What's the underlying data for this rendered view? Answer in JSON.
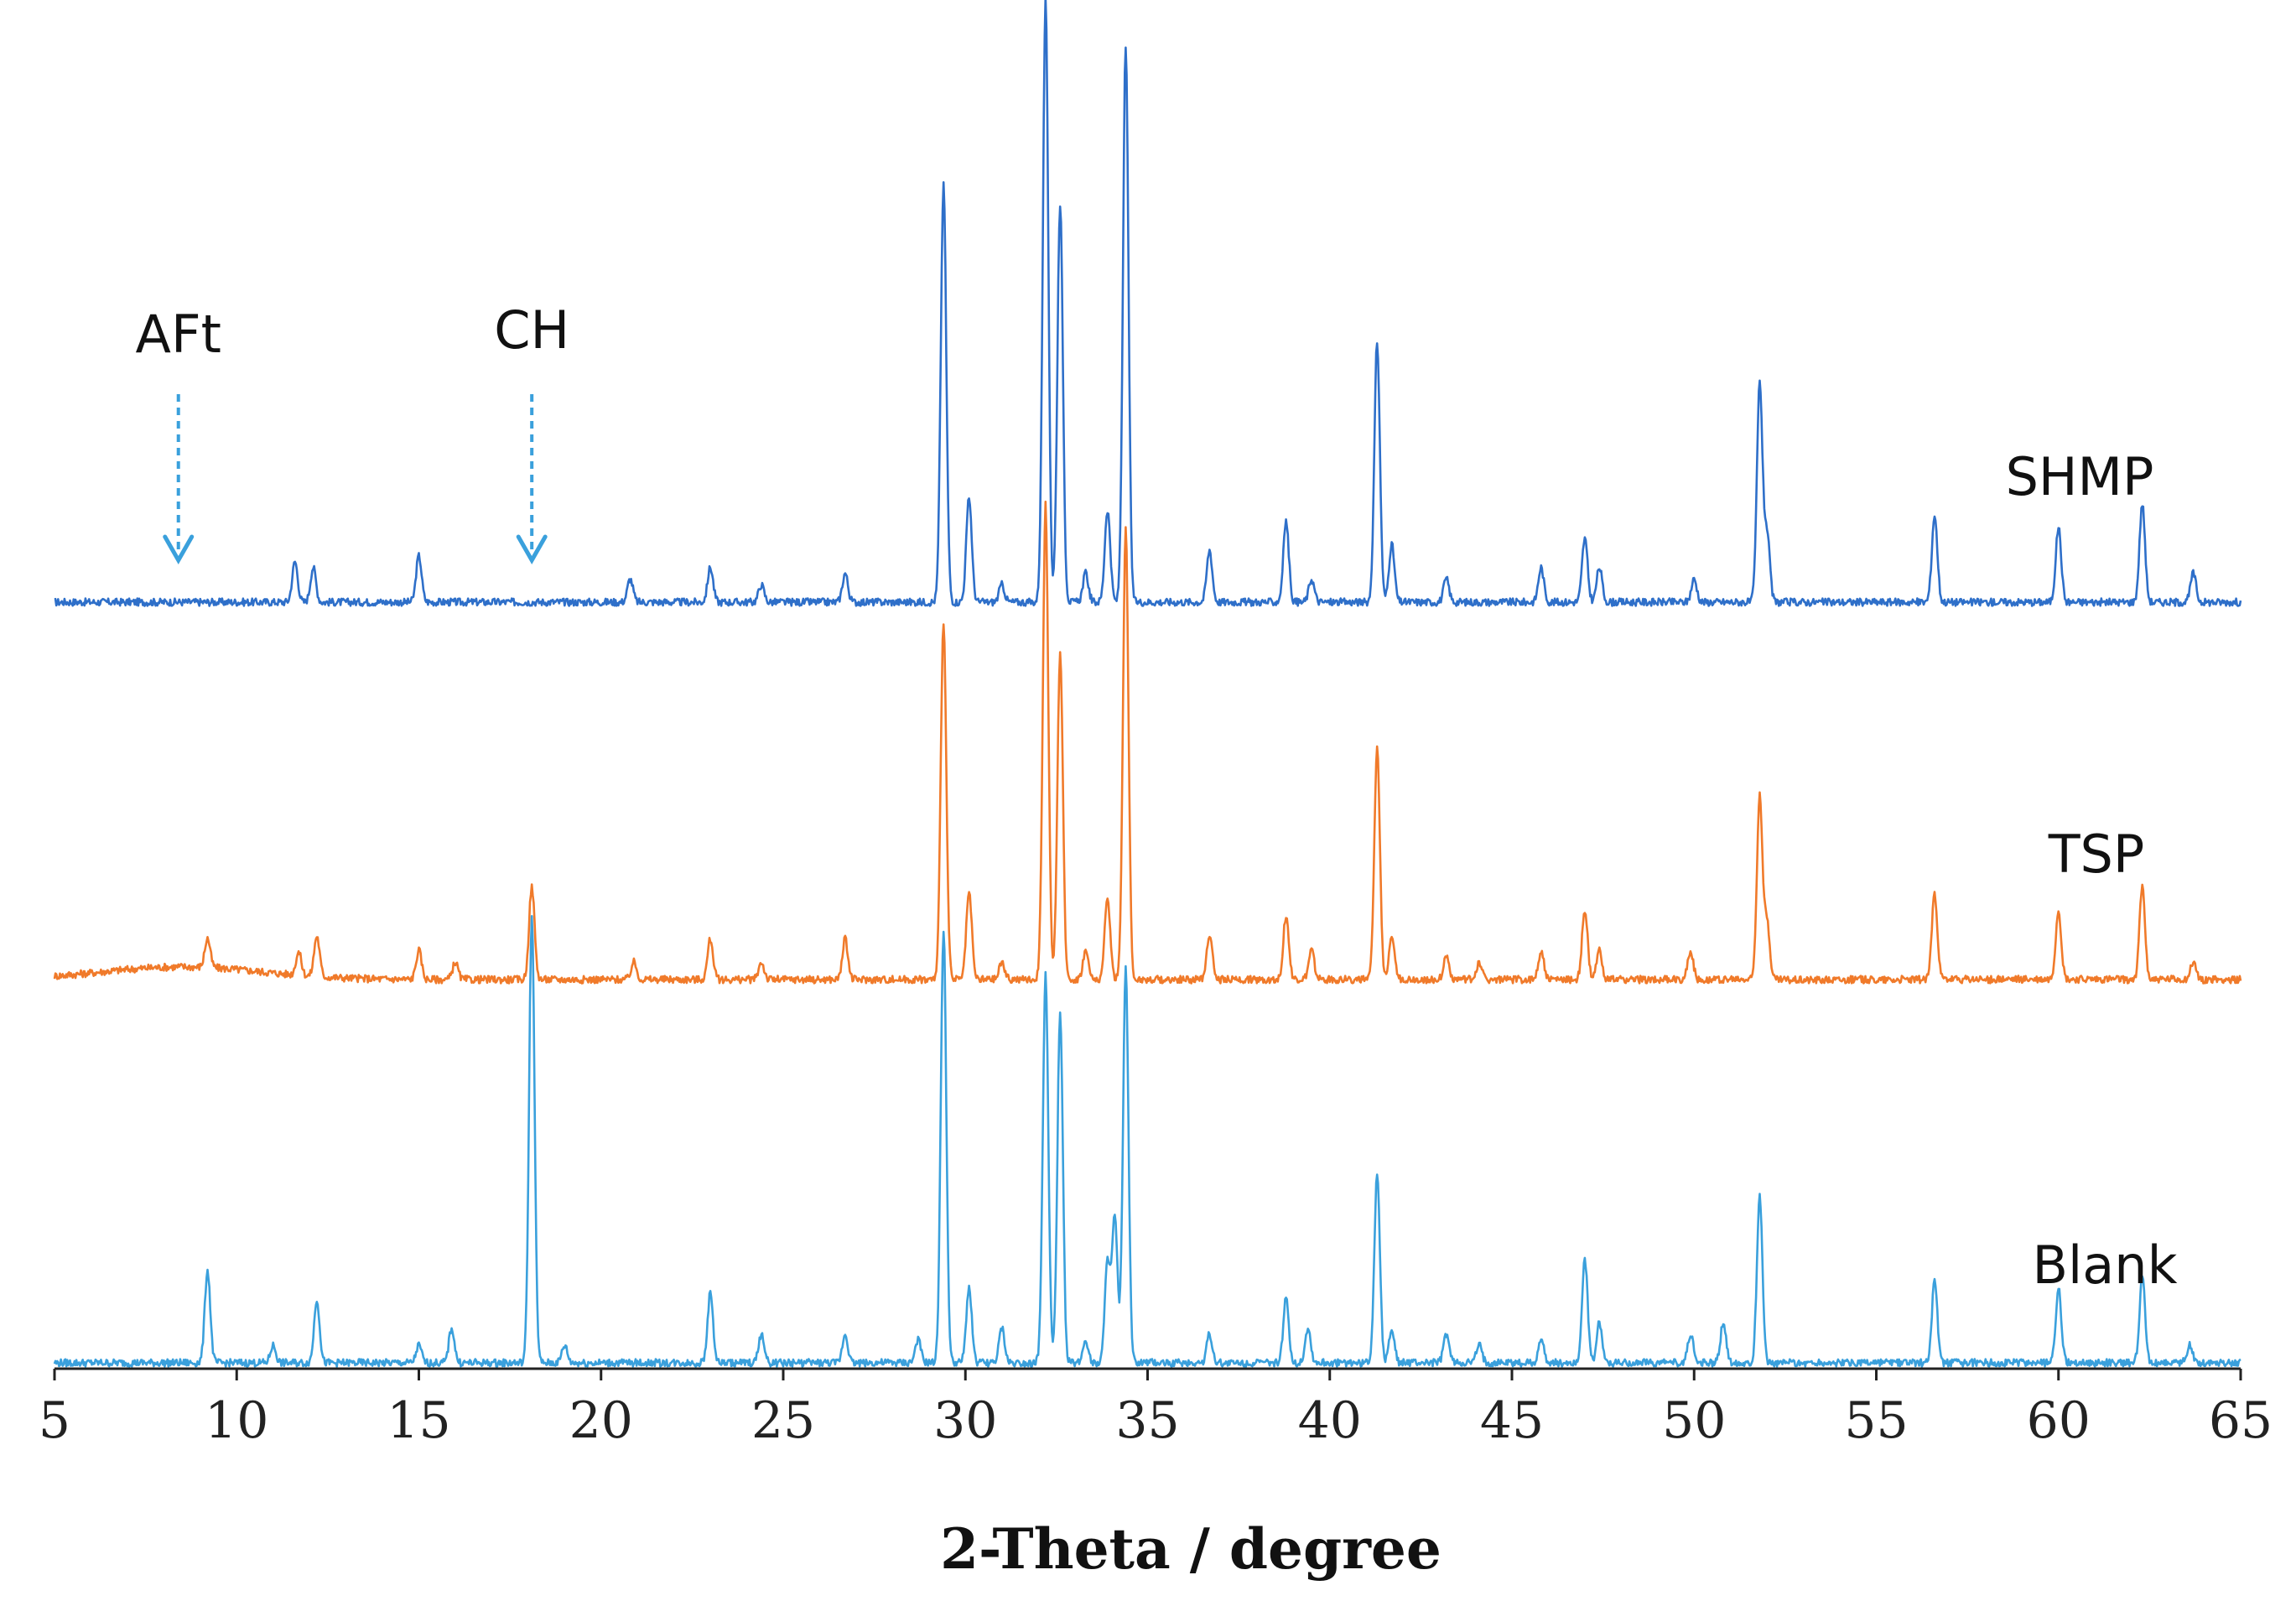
{
  "chart_data": {
    "type": "line",
    "title": "",
    "xlabel": "2-Theta / degree",
    "ylabel": "",
    "xlim": [
      5,
      65
    ],
    "xticks": [
      5,
      10,
      15,
      20,
      25,
      30,
      35,
      40,
      45,
      50,
      55,
      60,
      65
    ],
    "grid": false,
    "legend": "none",
    "annotations": [
      {
        "text": "AFt",
        "x": 8.4
      },
      {
        "text": "CH",
        "x": 18.1
      }
    ],
    "annotation_color": "#3aa0dc",
    "series": [
      {
        "name": "SHMP",
        "color": "#2e6fc9",
        "baseline": 0,
        "peaks": [
          {
            "x": 11.6,
            "h": 7
          },
          {
            "x": 12.1,
            "h": 6
          },
          {
            "x": 15.0,
            "h": 8
          },
          {
            "x": 20.8,
            "h": 4
          },
          {
            "x": 23.0,
            "h": 6
          },
          {
            "x": 24.4,
            "h": 3
          },
          {
            "x": 26.7,
            "h": 5
          },
          {
            "x": 29.4,
            "h": 72
          },
          {
            "x": 30.1,
            "h": 18
          },
          {
            "x": 31.0,
            "h": 3
          },
          {
            "x": 32.2,
            "h": 104
          },
          {
            "x": 32.6,
            "h": 69
          },
          {
            "x": 33.3,
            "h": 5
          },
          {
            "x": 33.9,
            "h": 16
          },
          {
            "x": 34.4,
            "h": 96
          },
          {
            "x": 36.7,
            "h": 9
          },
          {
            "x": 38.8,
            "h": 14
          },
          {
            "x": 39.5,
            "h": 4
          },
          {
            "x": 41.3,
            "h": 45
          },
          {
            "x": 41.7,
            "h": 10
          },
          {
            "x": 43.2,
            "h": 4
          },
          {
            "x": 45.8,
            "h": 6
          },
          {
            "x": 47.0,
            "h": 11
          },
          {
            "x": 47.4,
            "h": 6
          },
          {
            "x": 50.0,
            "h": 4
          },
          {
            "x": 51.8,
            "h": 38
          },
          {
            "x": 52.0,
            "h": 12
          },
          {
            "x": 56.6,
            "h": 15
          },
          {
            "x": 60.0,
            "h": 13
          },
          {
            "x": 62.3,
            "h": 17
          },
          {
            "x": 63.7,
            "h": 5
          }
        ]
      },
      {
        "name": "TSP",
        "color": "#f07a2a",
        "baseline": 0,
        "peaks": [
          {
            "x": 9.2,
            "h": 5
          },
          {
            "x": 11.7,
            "h": 4
          },
          {
            "x": 12.2,
            "h": 7
          },
          {
            "x": 15.0,
            "h": 5
          },
          {
            "x": 16.0,
            "h": 3
          },
          {
            "x": 18.1,
            "h": 16
          },
          {
            "x": 20.9,
            "h": 3
          },
          {
            "x": 23.0,
            "h": 7
          },
          {
            "x": 24.4,
            "h": 3
          },
          {
            "x": 26.7,
            "h": 7
          },
          {
            "x": 29.4,
            "h": 62
          },
          {
            "x": 30.1,
            "h": 15
          },
          {
            "x": 31.0,
            "h": 3
          },
          {
            "x": 32.2,
            "h": 82
          },
          {
            "x": 32.6,
            "h": 56
          },
          {
            "x": 33.3,
            "h": 5
          },
          {
            "x": 33.9,
            "h": 14
          },
          {
            "x": 34.4,
            "h": 78
          },
          {
            "x": 36.7,
            "h": 8
          },
          {
            "x": 38.8,
            "h": 11
          },
          {
            "x": 39.5,
            "h": 5
          },
          {
            "x": 41.3,
            "h": 40
          },
          {
            "x": 41.7,
            "h": 8
          },
          {
            "x": 43.2,
            "h": 4
          },
          {
            "x": 44.1,
            "h": 3
          },
          {
            "x": 45.8,
            "h": 5
          },
          {
            "x": 47.0,
            "h": 12
          },
          {
            "x": 47.4,
            "h": 5
          },
          {
            "x": 49.9,
            "h": 5
          },
          {
            "x": 51.8,
            "h": 32
          },
          {
            "x": 52.0,
            "h": 10
          },
          {
            "x": 56.6,
            "h": 15
          },
          {
            "x": 60.0,
            "h": 12
          },
          {
            "x": 62.3,
            "h": 16
          },
          {
            "x": 63.7,
            "h": 3
          }
        ]
      },
      {
        "name": "Blank",
        "color": "#3aa0dc",
        "baseline": 0,
        "peaks": [
          {
            "x": 9.2,
            "h": 16
          },
          {
            "x": 11.0,
            "h": 3
          },
          {
            "x": 12.2,
            "h": 11
          },
          {
            "x": 15.0,
            "h": 3
          },
          {
            "x": 15.9,
            "h": 6
          },
          {
            "x": 18.1,
            "h": 77
          },
          {
            "x": 19.0,
            "h": 3
          },
          {
            "x": 23.0,
            "h": 12
          },
          {
            "x": 24.4,
            "h": 5
          },
          {
            "x": 26.7,
            "h": 5
          },
          {
            "x": 28.7,
            "h": 4
          },
          {
            "x": 29.4,
            "h": 75
          },
          {
            "x": 30.1,
            "h": 13
          },
          {
            "x": 31.0,
            "h": 6
          },
          {
            "x": 32.2,
            "h": 67
          },
          {
            "x": 32.6,
            "h": 60
          },
          {
            "x": 33.3,
            "h": 4
          },
          {
            "x": 33.9,
            "h": 17
          },
          {
            "x": 34.1,
            "h": 25
          },
          {
            "x": 34.4,
            "h": 68
          },
          {
            "x": 36.7,
            "h": 5
          },
          {
            "x": 38.8,
            "h": 11
          },
          {
            "x": 39.4,
            "h": 6
          },
          {
            "x": 41.3,
            "h": 33
          },
          {
            "x": 41.7,
            "h": 6
          },
          {
            "x": 43.2,
            "h": 5
          },
          {
            "x": 44.1,
            "h": 3
          },
          {
            "x": 45.8,
            "h": 4
          },
          {
            "x": 47.0,
            "h": 18
          },
          {
            "x": 47.4,
            "h": 7
          },
          {
            "x": 49.9,
            "h": 5
          },
          {
            "x": 50.8,
            "h": 7
          },
          {
            "x": 51.8,
            "h": 29
          },
          {
            "x": 56.6,
            "h": 14
          },
          {
            "x": 60.0,
            "h": 13
          },
          {
            "x": 62.3,
            "h": 15
          },
          {
            "x": 63.6,
            "h": 3
          }
        ]
      }
    ]
  }
}
